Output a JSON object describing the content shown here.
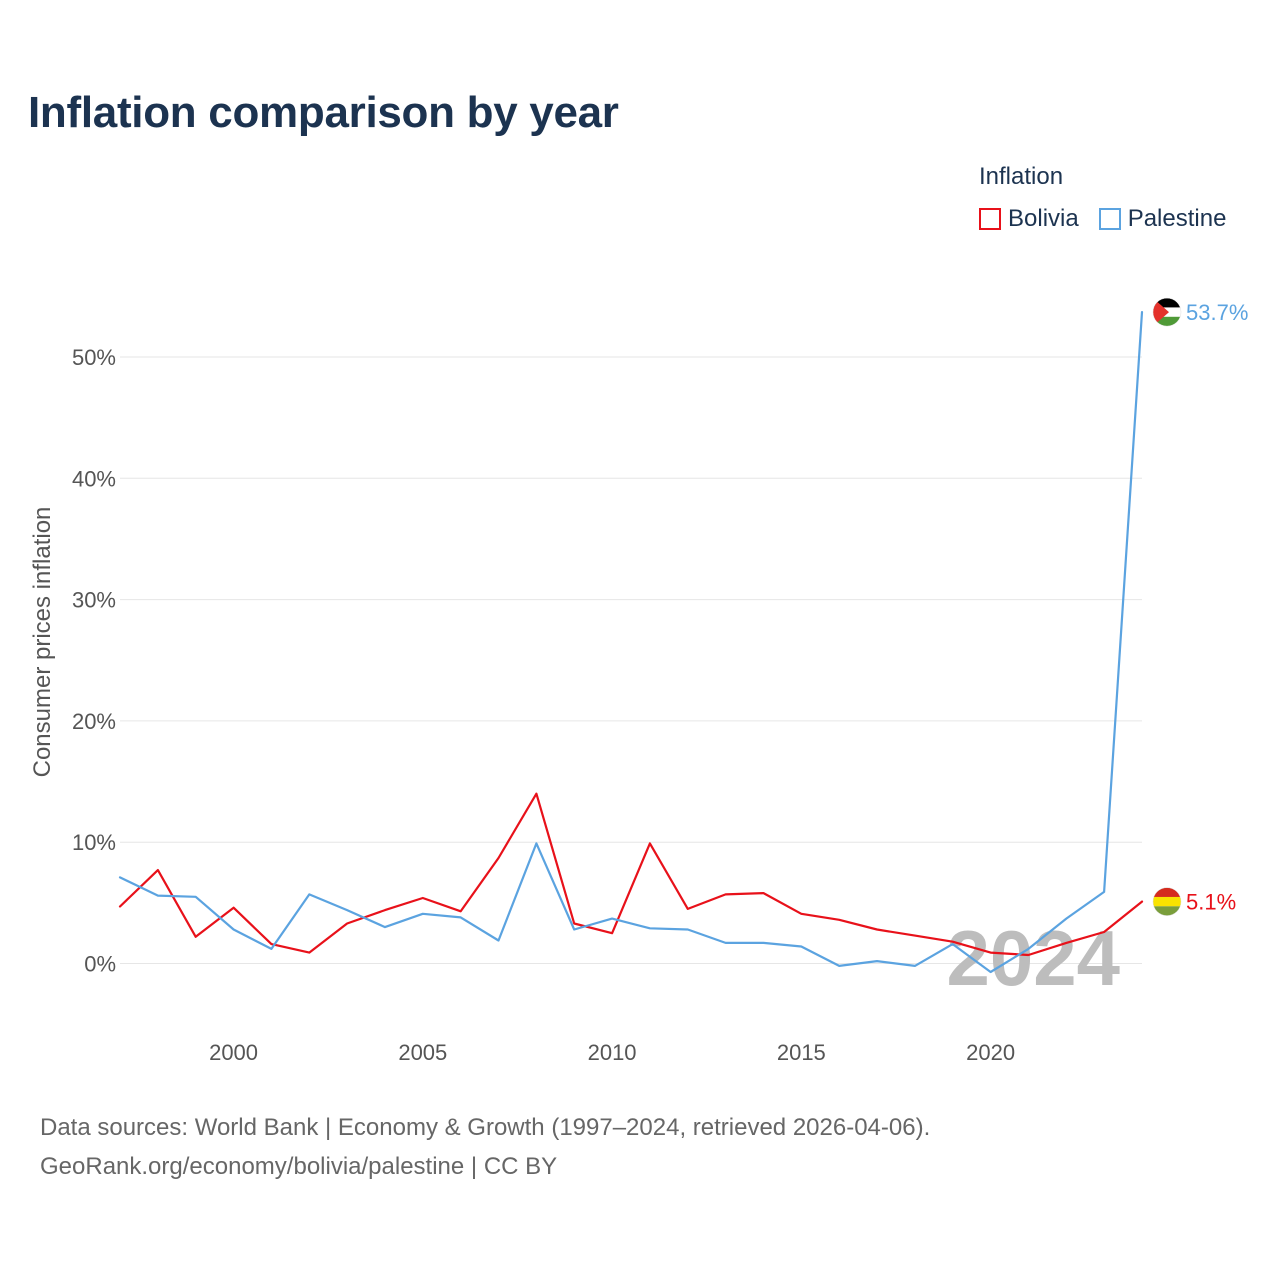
{
  "title": "Inflation comparison by year",
  "legend": {
    "title": "Inflation",
    "items": [
      {
        "label": "Bolivia",
        "color": "#e8111a"
      },
      {
        "label": "Palestine",
        "color": "#5ba3e0"
      }
    ]
  },
  "footer": {
    "line1": "Data sources: World Bank | Economy & Growth (1997–2024, retrieved 2026-04-06).",
    "line2": "GeoRank.org/economy/bolivia/palestine | CC BY"
  },
  "chart_data": {
    "type": "line",
    "ylabel": "Consumer prices inflation",
    "ylim": [
      -5,
      56
    ],
    "xlim": [
      1997,
      2024
    ],
    "y_ticks": [
      0,
      10,
      20,
      30,
      40,
      50
    ],
    "y_tick_labels": [
      "0%",
      "10%",
      "20%",
      "30%",
      "40%",
      "50%"
    ],
    "x_ticks": [
      2000,
      2005,
      2010,
      2015,
      2020
    ],
    "x_tick_labels": [
      "2000",
      "2005",
      "2010",
      "2015",
      "2020"
    ],
    "grid": true,
    "watermark_year": "2024",
    "x": [
      1997,
      1998,
      1999,
      2000,
      2001,
      2002,
      2003,
      2004,
      2005,
      2006,
      2007,
      2008,
      2009,
      2010,
      2011,
      2012,
      2013,
      2014,
      2015,
      2016,
      2017,
      2018,
      2019,
      2020,
      2021,
      2022,
      2023,
      2024
    ],
    "series": [
      {
        "name": "Bolivia",
        "color": "#e8111a",
        "values": [
          4.7,
          7.7,
          2.2,
          4.6,
          1.6,
          0.9,
          3.3,
          4.4,
          5.4,
          4.3,
          8.7,
          14.0,
          3.3,
          2.5,
          9.9,
          4.5,
          5.7,
          5.8,
          4.1,
          3.6,
          2.8,
          2.3,
          1.8,
          0.9,
          0.7,
          1.7,
          2.6,
          5.1
        ],
        "end_label": "5.1%",
        "flag": "bolivia"
      },
      {
        "name": "Palestine",
        "color": "#5ba3e0",
        "values": [
          7.1,
          5.6,
          5.5,
          2.8,
          1.2,
          5.7,
          4.4,
          3.0,
          4.1,
          3.8,
          1.9,
          9.9,
          2.8,
          3.7,
          2.9,
          2.8,
          1.7,
          1.7,
          1.4,
          -0.2,
          0.2,
          -0.2,
          1.6,
          -0.7,
          1.2,
          3.7,
          5.9,
          53.7
        ],
        "end_label": "53.7%",
        "flag": "palestine"
      }
    ]
  }
}
